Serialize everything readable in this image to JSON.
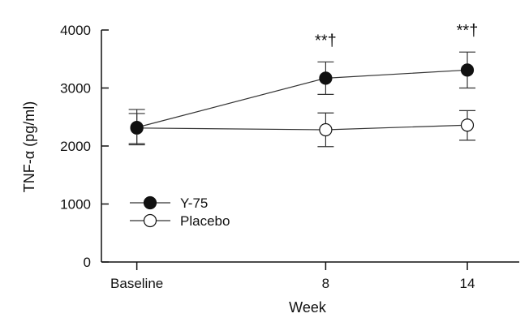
{
  "chart_data": {
    "type": "line",
    "title": "",
    "xlabel": "Week",
    "ylabel": "TNF-α (pg/ml)",
    "categories": [
      "Baseline",
      "8",
      "14"
    ],
    "x_positions": [
      0,
      8,
      14
    ],
    "xlim": [
      -1.5,
      16.2
    ],
    "ylim": [
      0,
      4000
    ],
    "yticks": [
      0,
      1000,
      2000,
      3000,
      4000
    ],
    "ytick_labels": [
      "0",
      "1000",
      "2000",
      "3000",
      "4000"
    ],
    "grid": false,
    "legend_position": "lower-left",
    "series": [
      {
        "name": "Y-75",
        "marker": "filled-circle",
        "values": [
          2320,
          3170,
          3310
        ],
        "err_upper": [
          2630,
          3450,
          3620
        ],
        "err_lower": [
          2020,
          2890,
          3000
        ]
      },
      {
        "name": "Placebo",
        "marker": "open-circle",
        "values": [
          2310,
          2280,
          2360
        ],
        "err_upper": [
          2560,
          2570,
          2610
        ],
        "err_lower": [
          2040,
          1990,
          2100
        ]
      }
    ],
    "annotations": [
      {
        "x": 8,
        "text": "**†"
      },
      {
        "x": 14,
        "text": "**†"
      }
    ],
    "colors": {
      "line": "#333333",
      "filled_marker": "#111111",
      "open_marker_fill": "#ffffff"
    }
  }
}
